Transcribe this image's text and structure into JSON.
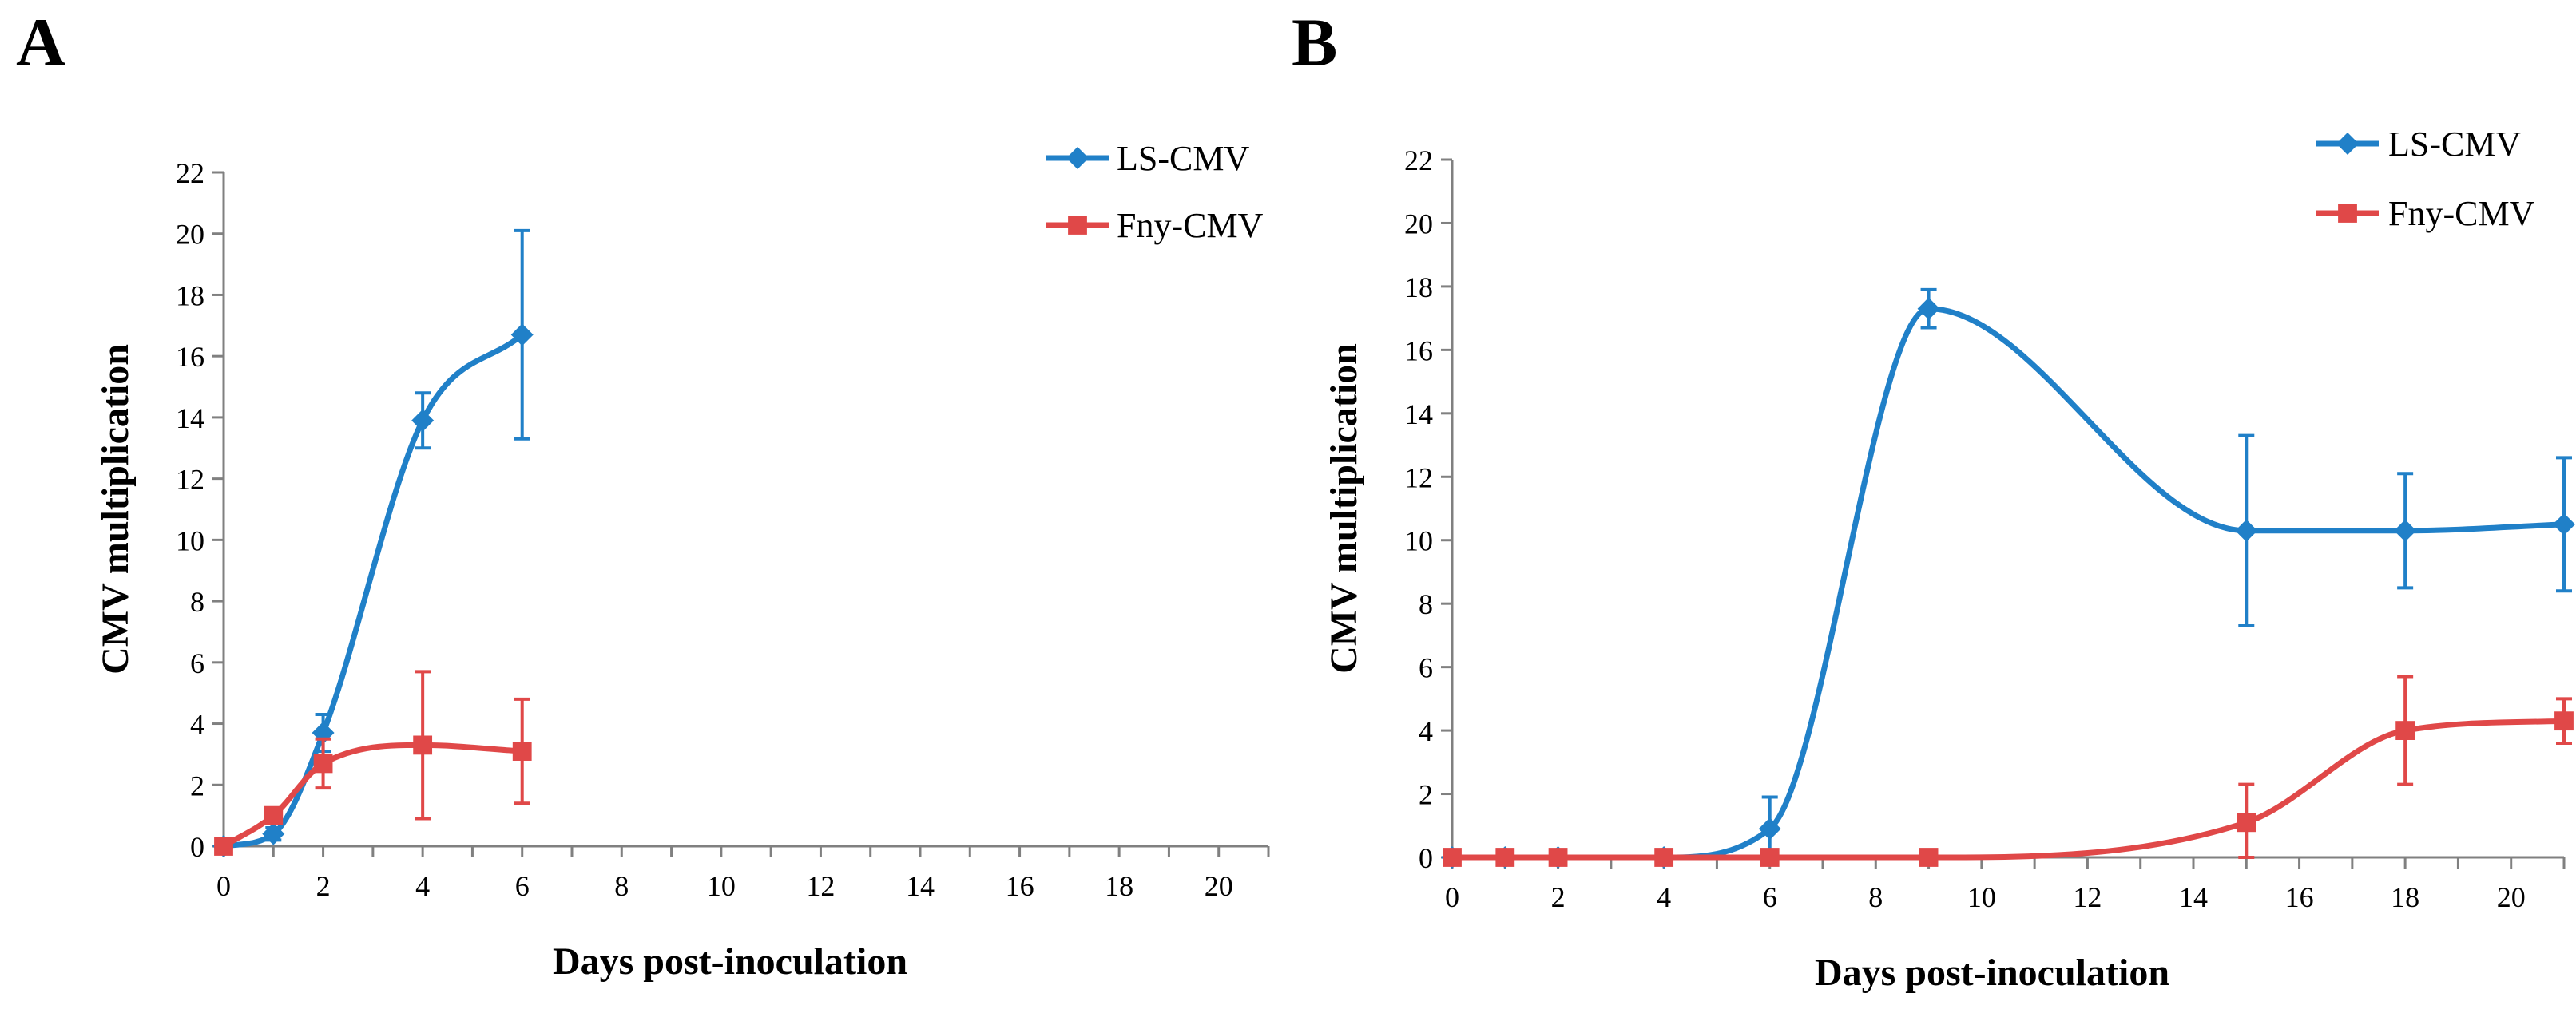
{
  "colors": {
    "ls": "#2080C8",
    "fny": "#E04848",
    "axis": "#808080"
  },
  "chart_data": [
    {
      "type": "line",
      "panel_label": "A",
      "title": "",
      "xlabel": "Days post-inoculation",
      "ylabel": "CMV multiplication",
      "xlim": [
        0,
        21
      ],
      "ylim": [
        0,
        22
      ],
      "x_ticks": [
        "0",
        "2",
        "4",
        "6",
        "8",
        "10",
        "12",
        "14",
        "16",
        "18",
        "20"
      ],
      "y_ticks": [
        "0",
        "2",
        "4",
        "6",
        "8",
        "10",
        "12",
        "14",
        "16",
        "18",
        "20",
        "22"
      ],
      "legend_position": "top-right",
      "series": [
        {
          "name": "LS-CMV",
          "color": "#2080C8",
          "marker": "diamond",
          "x": [
            0,
            1,
            2,
            4,
            6
          ],
          "values": [
            0,
            0.4,
            3.7,
            13.9,
            16.7
          ],
          "errors": [
            0,
            0.2,
            0.6,
            0.9,
            3.4
          ]
        },
        {
          "name": "Fny-CMV",
          "color": "#E04848",
          "marker": "square",
          "x": [
            0,
            1,
            2,
            4,
            6
          ],
          "values": [
            0,
            1.0,
            2.7,
            3.3,
            3.1
          ],
          "errors": [
            0,
            0.1,
            0.8,
            2.4,
            1.7
          ]
        }
      ]
    },
    {
      "type": "line",
      "panel_label": "B",
      "title": "",
      "xlabel": "Days post-inoculation",
      "ylabel": "CMV multiplication",
      "xlim": [
        0,
        21
      ],
      "ylim": [
        0,
        22
      ],
      "x_ticks": [
        "0",
        "2",
        "4",
        "6",
        "8",
        "10",
        "12",
        "14",
        "16",
        "18",
        "20"
      ],
      "y_ticks": [
        "0",
        "2",
        "4",
        "6",
        "8",
        "10",
        "12",
        "14",
        "16",
        "18",
        "20",
        "22"
      ],
      "legend_position": "top-right",
      "series": [
        {
          "name": "LS-CMV",
          "color": "#2080C8",
          "marker": "diamond",
          "x": [
            0,
            1,
            2,
            4,
            6,
            9,
            15,
            18,
            21
          ],
          "values": [
            0,
            0,
            0,
            0,
            0.9,
            17.3,
            10.3,
            10.3,
            10.5
          ],
          "errors": [
            0,
            0,
            0,
            0,
            1.0,
            0.6,
            3.0,
            1.8,
            2.1
          ]
        },
        {
          "name": "Fny-CMV",
          "color": "#E04848",
          "marker": "square",
          "x": [
            0,
            1,
            2,
            4,
            6,
            9,
            15,
            18,
            21
          ],
          "values": [
            0,
            0,
            0,
            0,
            0,
            0,
            1.1,
            4.0,
            4.3
          ],
          "errors": [
            0,
            0,
            0,
            0,
            0,
            0,
            1.2,
            1.7,
            0.7
          ]
        }
      ]
    }
  ]
}
